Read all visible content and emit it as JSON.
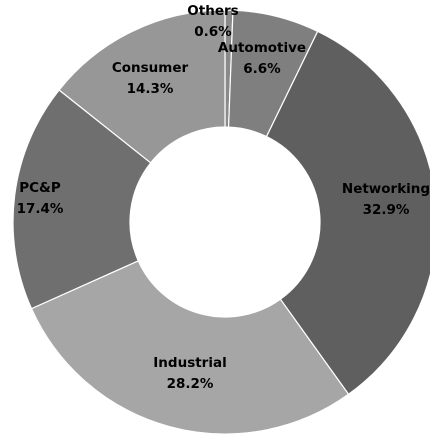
{
  "chart_data": {
    "type": "pie",
    "title": "",
    "donut": true,
    "start_angle_deg": 0,
    "direction": "clockwise",
    "slices": [
      {
        "name": "Others",
        "value": 0.6,
        "label": "0.6%",
        "color": "#8a8a8a"
      },
      {
        "name": "Automotive",
        "value": 6.6,
        "label": "6.6%",
        "color": "#7f7f7f"
      },
      {
        "name": "Networking",
        "value": 32.9,
        "label": "32.9%",
        "color": "#5f5f5f"
      },
      {
        "name": "Industrial",
        "value": 28.2,
        "label": "28.2%",
        "color": "#a6a6a6"
      },
      {
        "name": "PC&P",
        "value": 17.4,
        "label": "17.4%",
        "color": "#6f6f6f"
      },
      {
        "name": "Consumer",
        "value": 14.3,
        "label": "14.3%",
        "color": "#979797"
      }
    ],
    "legend": "none"
  }
}
